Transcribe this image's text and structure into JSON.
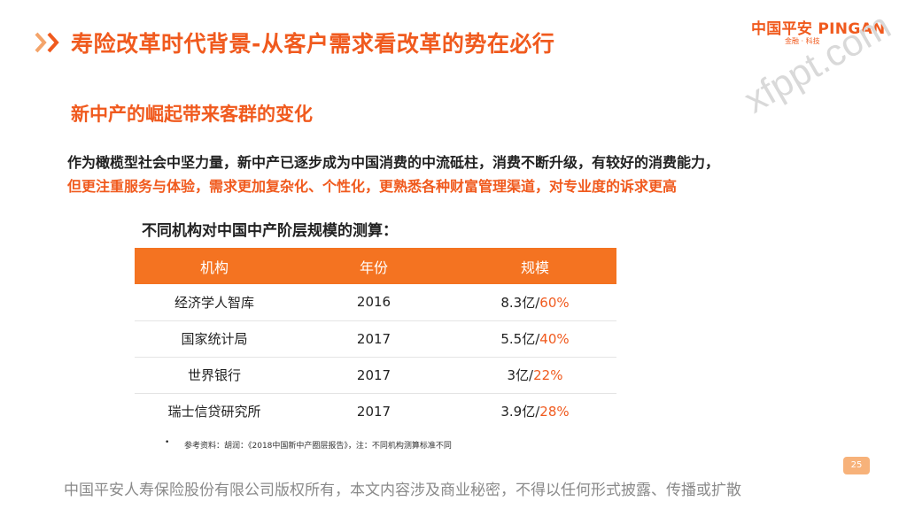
{
  "header": {
    "title": "寿险改革时代背景-从客户需求看改革的势在必行",
    "logo_main": "中国平安 PINGAN",
    "logo_sub": "金融 · 科技",
    "watermark": "xfppt.com"
  },
  "section": {
    "subtitle": "新中产的崛起带来客群的变化",
    "paragraph_line1": "作为橄榄型社会中坚力量，新中产已逐步成为中国消费的中流砥柱，消费不断升级，有较好的消费能力，",
    "paragraph_line2": "但更注重服务与体验，需求更加复杂化、个性化，更熟悉各种财富管理渠道，对专业度的诉求更高"
  },
  "table": {
    "heading": "不同机构对中国中产阶层规模的测算：",
    "headers": [
      "机构",
      "年份",
      "规模"
    ],
    "rows": [
      {
        "institution": "经济学人智库",
        "year": "2016",
        "scale": "8.3亿/",
        "pct": "60%"
      },
      {
        "institution": "国家统计局",
        "year": "2017",
        "scale": "5.5亿/",
        "pct": "40%"
      },
      {
        "institution": "世界银行",
        "year": "2017",
        "scale": "3亿/",
        "pct": "22%"
      },
      {
        "institution": "瑞士信贷研究所",
        "year": "2017",
        "scale": "3.9亿/",
        "pct": "28%"
      }
    ],
    "note_bullet": "•",
    "note": "参考资料：胡润：《2018中国新中产圈层报告》，注：不同机构测算标准不同"
  },
  "footer": {
    "page_number": "25",
    "copyright": "中国平安人寿保险股份有限公司版权所有，本文内容涉及商业秘密，不得以任何形式披露、传播或扩散"
  },
  "colors": {
    "accent": "#f05a1e",
    "table_header": "#f47321",
    "page_badge": "#f7b27a"
  }
}
